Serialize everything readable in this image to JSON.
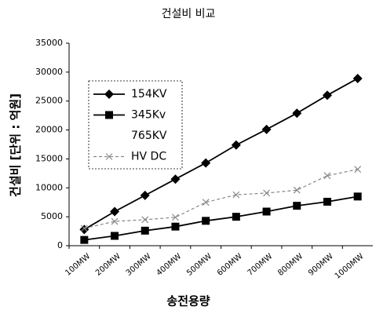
{
  "chart_data": {
    "type": "line",
    "title": "건설비 비교",
    "x_label": "송전용량",
    "y_label": "건설비 [단위 : 억원]",
    "categories": [
      "100MW",
      "200MW",
      "300MW",
      "400MW",
      "500MW",
      "600MW",
      "700MW",
      "800MW",
      "900MW",
      "1000MW"
    ],
    "series": [
      {
        "name": "154KV",
        "color": "#000000",
        "marker": "diamond",
        "dash": false,
        "values": [
          2800,
          5900,
          8700,
          11500,
          14300,
          17400,
          20100,
          22900,
          26000,
          28900
        ]
      },
      {
        "name": "345Kv",
        "color": "#000000",
        "marker": "square",
        "dash": false,
        "values": [
          1000,
          1700,
          2600,
          3300,
          4300,
          5000,
          5900,
          6900,
          7600,
          8500
        ]
      },
      {
        "name": "765KV",
        "color": "#ffffff",
        "marker": "none",
        "dash": false,
        "values": [
          null,
          null,
          null,
          null,
          null,
          null,
          null,
          null,
          null,
          null
        ]
      },
      {
        "name": "HV DC",
        "color": "#888888",
        "marker": "x",
        "dash": true,
        "values": [
          3000,
          4200,
          4500,
          4900,
          7500,
          8800,
          9100,
          9600,
          12100,
          13200
        ]
      }
    ],
    "ylim": [
      0,
      35000
    ],
    "yticks": [
      0,
      5000,
      10000,
      15000,
      20000,
      25000,
      30000,
      35000
    ],
    "grid": false,
    "legend": "upper left"
  }
}
